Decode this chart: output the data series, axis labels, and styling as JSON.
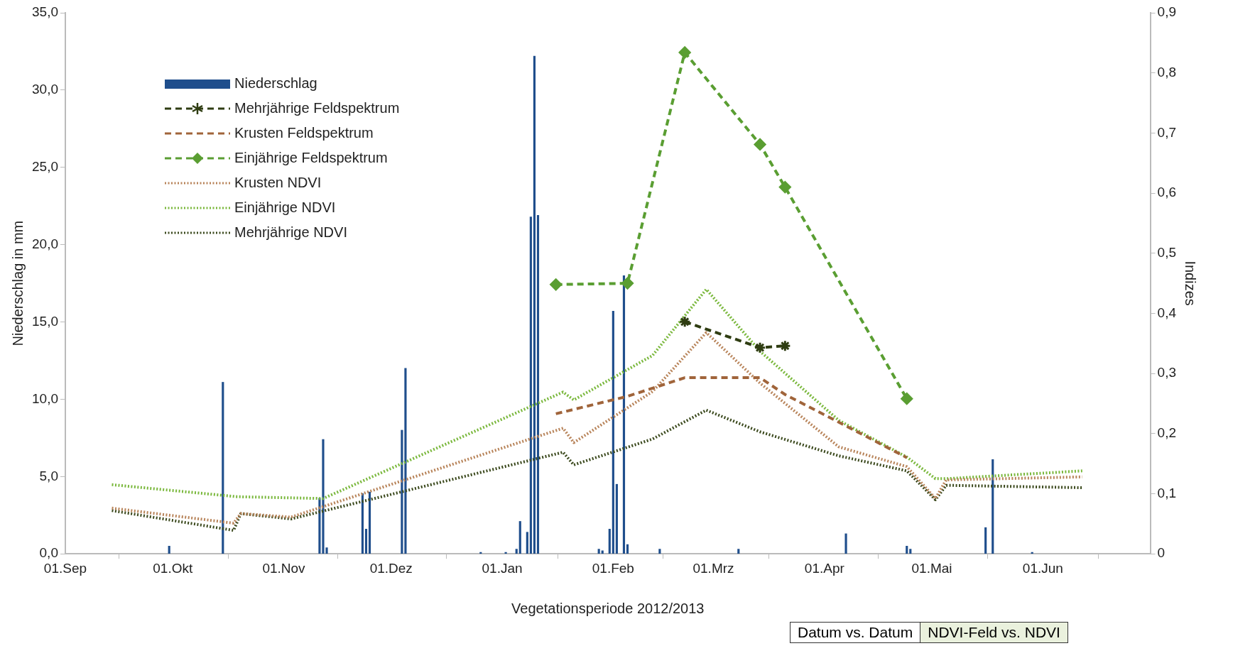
{
  "chart_data": {
    "type": "line",
    "xlabel": "Vegetationsperiode 2012/2013",
    "ylabel": "Niederschlag in mm",
    "y2label": "Indizes",
    "xlim": [
      "2012-09-01",
      "2013-07-01"
    ],
    "xticks": [
      {
        "value": "2012-09-01",
        "label": "01.Sep"
      },
      {
        "value": "2012-10-01",
        "label": "01.Okt"
      },
      {
        "value": "2012-11-01",
        "label": "01.Nov"
      },
      {
        "value": "2012-12-01",
        "label": "01.Dez"
      },
      {
        "value": "2013-01-01",
        "label": "01.Jan"
      },
      {
        "value": "2013-02-01",
        "label": "01.Feb"
      },
      {
        "value": "2013-03-01",
        "label": "01.Mrz"
      },
      {
        "value": "2013-04-01",
        "label": "01.Apr"
      },
      {
        "value": "2013-05-01",
        "label": "01.Mai"
      },
      {
        "value": "2013-06-01",
        "label": "01.Jun"
      }
    ],
    "ylim": [
      0,
      35
    ],
    "yticks": [
      {
        "value": 0,
        "label": "0,0"
      },
      {
        "value": 5,
        "label": "5,0"
      },
      {
        "value": 10,
        "label": "10,0"
      },
      {
        "value": 15,
        "label": "15,0"
      },
      {
        "value": 20,
        "label": "20,0"
      },
      {
        "value": 25,
        "label": "25,0"
      },
      {
        "value": 30,
        "label": "30,0"
      },
      {
        "value": 35,
        "label": "35,0"
      }
    ],
    "y2lim": [
      0,
      0.9
    ],
    "y2ticks": [
      0,
      {
        "value": 0.1,
        "label": "0,1"
      },
      {
        "value": 0.2,
        "label": "0,2"
      },
      {
        "value": 0.3,
        "label": "0,3"
      },
      {
        "value": 0.4,
        "label": "0,4"
      },
      {
        "value": 0.5,
        "label": "0,5"
      },
      {
        "value": 0.6,
        "label": "0,6"
      },
      {
        "value": 0.7,
        "label": "0,7"
      },
      {
        "value": 0.8,
        "label": "0,8"
      },
      {
        "value": 0.9,
        "label": "0,9"
      }
    ],
    "grid": false,
    "legend": "top left",
    "annotations": [
      "Datum vs. Datum",
      "NDVI-Feld vs. NDVI"
    ],
    "series": [
      {
        "name": "Niederschlag",
        "type": "bar",
        "axis": "y",
        "color": "#1f4e8c",
        "x": [
          "2012-09-30",
          "2012-10-15",
          "2012-11-11",
          "2012-11-12",
          "2012-11-13",
          "2012-11-23",
          "2012-11-24",
          "2012-11-25",
          "2012-12-04",
          "2012-12-05",
          "2012-12-26",
          "2013-01-02",
          "2013-01-05",
          "2013-01-06",
          "2013-01-08",
          "2013-01-09",
          "2013-01-10",
          "2013-01-11",
          "2013-01-28",
          "2013-01-29",
          "2013-01-31",
          "2013-02-01",
          "2013-02-02",
          "2013-02-04",
          "2013-02-05",
          "2013-02-14",
          "2013-03-08",
          "2013-04-07",
          "2013-04-24",
          "2013-04-25",
          "2013-05-16",
          "2013-05-18",
          "2013-05-29"
        ],
        "values": [
          0.5,
          11.1,
          3.6,
          7.4,
          0.4,
          3.9,
          1.6,
          4.0,
          8.0,
          12.0,
          0.1,
          0.1,
          0.3,
          2.1,
          1.4,
          21.8,
          32.2,
          21.9,
          0.3,
          0.2,
          1.6,
          15.7,
          4.5,
          18.0,
          0.6,
          0.3,
          0.3,
          1.3,
          0.5,
          0.3,
          1.7,
          6.1,
          0.1
        ]
      },
      {
        "name": "Mehrjährige Feldspektrum",
        "axis": "y2",
        "color": "#2f3d12",
        "line_style": "dashed",
        "marker": "cross",
        "x": [
          "2013-02-21",
          "2013-03-14",
          "2013-03-21"
        ],
        "values": [
          0.386,
          0.343,
          0.346
        ]
      },
      {
        "name": "Krusten Feldspektrum",
        "axis": "y2",
        "color": "#a0643a",
        "line_style": "dashed",
        "marker": "none",
        "x": [
          "2013-01-16",
          "2013-02-05",
          "2013-02-21",
          "2013-03-14",
          "2013-03-21",
          "2013-04-05",
          "2013-04-24"
        ],
        "values": [
          0.233,
          0.262,
          0.293,
          0.293,
          0.265,
          0.219,
          0.16
        ]
      },
      {
        "name": "Einjährige Feldspektrum",
        "axis": "y2",
        "color": "#5a9e32",
        "line_style": "dashed",
        "marker": "diamond",
        "x": [
          "2013-01-16",
          "2013-02-05",
          "2013-02-21",
          "2013-03-14",
          "2013-03-21",
          "2013-04-24"
        ],
        "values": [
          0.448,
          0.45,
          0.834,
          0.681,
          0.61,
          0.258
        ]
      },
      {
        "name": "Krusten NDVI",
        "axis": "y2",
        "color": "#b8845a",
        "line_style": "dotted",
        "marker": "none",
        "x": [
          "2012-09-14",
          "2012-10-18",
          "2012-10-20",
          "2012-11-03",
          "2013-01-18",
          "2013-01-21",
          "2013-02-12",
          "2013-02-27",
          "2013-03-14",
          "2013-04-05",
          "2013-04-24",
          "2013-05-02",
          "2013-05-05",
          "2013-06-12"
        ],
        "values": [
          0.076,
          0.051,
          0.067,
          0.061,
          0.209,
          0.185,
          0.27,
          0.368,
          0.284,
          0.178,
          0.145,
          0.092,
          0.123,
          0.128
        ]
      },
      {
        "name": "Einjährige NDVI",
        "axis": "y2",
        "color": "#7ab83c",
        "line_style": "dotted",
        "marker": "none",
        "x": [
          "2012-09-14",
          "2012-10-19",
          "2012-11-12",
          "2013-01-18",
          "2013-01-21",
          "2013-02-12",
          "2013-02-27",
          "2013-03-14",
          "2013-04-05",
          "2013-04-24",
          "2013-05-02",
          "2013-05-05",
          "2013-06-12"
        ],
        "values": [
          0.115,
          0.095,
          0.092,
          0.269,
          0.256,
          0.33,
          0.44,
          0.337,
          0.222,
          0.161,
          0.125,
          0.125,
          0.138
        ]
      },
      {
        "name": "Mehrjährige NDVI",
        "axis": "y2",
        "color": "#3c4a1e",
        "line_style": "dotted",
        "marker": "none",
        "x": [
          "2012-09-14",
          "2012-10-18",
          "2012-10-20",
          "2012-11-03",
          "2013-01-18",
          "2013-01-21",
          "2013-02-12",
          "2013-02-27",
          "2013-03-14",
          "2013-04-05",
          "2013-04-24",
          "2013-05-02",
          "2013-05-05",
          "2013-06-12"
        ],
        "values": [
          0.072,
          0.039,
          0.067,
          0.058,
          0.169,
          0.148,
          0.191,
          0.239,
          0.203,
          0.163,
          0.138,
          0.09,
          0.114,
          0.11
        ]
      }
    ]
  }
}
